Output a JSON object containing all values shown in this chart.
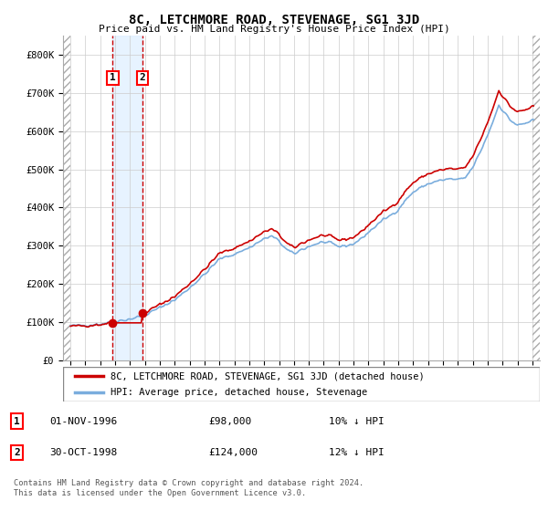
{
  "title": "8C, LETCHMORE ROAD, STEVENAGE, SG1 3JD",
  "subtitle": "Price paid vs. HM Land Registry's House Price Index (HPI)",
  "property_label": "8C, LETCHMORE ROAD, STEVENAGE, SG1 3JD (detached house)",
  "hpi_label": "HPI: Average price, detached house, Stevenage",
  "property_color": "#cc0000",
  "hpi_color": "#7aaddd",
  "transaction1_x": 1996.833,
  "transaction1_price": 98000,
  "transaction1_date": "01-NOV-1996",
  "transaction1_note": "10% ↓ HPI",
  "transaction2_x": 1998.833,
  "transaction2_price": 124000,
  "transaction2_date": "30-OCT-1998",
  "transaction2_note": "12% ↓ HPI",
  "footer": "Contains HM Land Registry data © Crown copyright and database right 2024.\nThis data is licensed under the Open Government Licence v3.0.",
  "ylim": [
    0,
    850000
  ],
  "grid_color": "#cccccc",
  "bg_color": "#ffffff",
  "xmin": 1993.5,
  "xmax": 2025.5
}
